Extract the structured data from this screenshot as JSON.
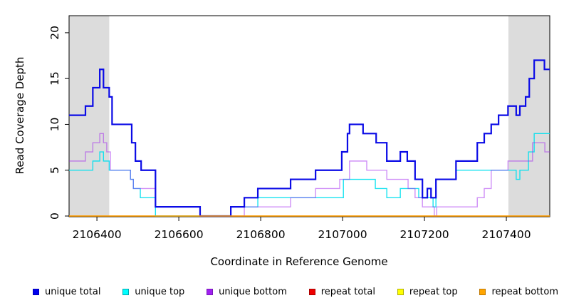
{
  "chart_data": {
    "type": "line",
    "subtype": "step",
    "title": "",
    "xlabel": "Coordinate in Reference Genome",
    "ylabel": "Read Coverage Depth",
    "xlim": [
      2106332,
      2107506
    ],
    "ylim": [
      0,
      21.86
    ],
    "xticks": [
      2106400,
      2106600,
      2106800,
      2107000,
      2107200,
      2107400
    ],
    "yticks": [
      0,
      5,
      10,
      15,
      20
    ],
    "grid": false,
    "legend_position": "bottom",
    "colors": {
      "background": "#FFFFFF",
      "shaded_band": "#DCDCDC",
      "axis": "#000000"
    },
    "shaded_regions": [
      {
        "from": 2106332,
        "to": 2106430
      },
      {
        "from": 2107405,
        "to": 2107506
      }
    ],
    "series": [
      {
        "name": "unique total",
        "color": "#0B0BE6",
        "width": 2.2,
        "opacity": 1,
        "points": [
          [
            2106332,
            11
          ],
          [
            2106372,
            12
          ],
          [
            2106390,
            14
          ],
          [
            2106407,
            16
          ],
          [
            2106416,
            14
          ],
          [
            2106430,
            13
          ],
          [
            2106437,
            10
          ],
          [
            2106485,
            8
          ],
          [
            2106494,
            6
          ],
          [
            2106508,
            5
          ],
          [
            2106543,
            1
          ],
          [
            2106652,
            0
          ],
          [
            2106727,
            1
          ],
          [
            2106760,
            2
          ],
          [
            2106793,
            3
          ],
          [
            2106873,
            4
          ],
          [
            2106934,
            5
          ],
          [
            2106998,
            7
          ],
          [
            2107012,
            9
          ],
          [
            2107017,
            10
          ],
          [
            2107050,
            9
          ],
          [
            2107082,
            8
          ],
          [
            2107108,
            6
          ],
          [
            2107141,
            7
          ],
          [
            2107158,
            6
          ],
          [
            2107177,
            4
          ],
          [
            2107195,
            2
          ],
          [
            2107207,
            3
          ],
          [
            2107216,
            2
          ],
          [
            2107228,
            4
          ],
          [
            2107277,
            6
          ],
          [
            2107329,
            8
          ],
          [
            2107346,
            9
          ],
          [
            2107363,
            10
          ],
          [
            2107381,
            11
          ],
          [
            2107404,
            12
          ],
          [
            2107424,
            11
          ],
          [
            2107433,
            12
          ],
          [
            2107447,
            13
          ],
          [
            2107456,
            15
          ],
          [
            2107468,
            17
          ],
          [
            2107493,
            16
          ]
        ]
      },
      {
        "name": "unique top",
        "color": "#00E0EE",
        "width": 1.4,
        "opacity": 0.9,
        "points": [
          [
            2106332,
            5
          ],
          [
            2106390,
            6
          ],
          [
            2106407,
            7
          ],
          [
            2106416,
            6
          ],
          [
            2106430,
            5
          ],
          [
            2106482,
            4
          ],
          [
            2106489,
            3
          ],
          [
            2106506,
            2
          ],
          [
            2106543,
            0
          ],
          [
            2106727,
            1
          ],
          [
            2106793,
            2
          ],
          [
            2107002,
            4
          ],
          [
            2107080,
            3
          ],
          [
            2107108,
            2
          ],
          [
            2107141,
            3
          ],
          [
            2107186,
            2
          ],
          [
            2107221,
            1
          ],
          [
            2107228,
            4
          ],
          [
            2107277,
            5
          ],
          [
            2107424,
            4
          ],
          [
            2107433,
            5
          ],
          [
            2107454,
            7
          ],
          [
            2107468,
            9
          ]
        ]
      },
      {
        "name": "unique bottom",
        "color": "#A020F0",
        "width": 1.4,
        "opacity": 0.5,
        "points": [
          [
            2106332,
            6
          ],
          [
            2106372,
            7
          ],
          [
            2106390,
            8
          ],
          [
            2106407,
            9
          ],
          [
            2106416,
            8
          ],
          [
            2106424,
            7
          ],
          [
            2106433,
            5
          ],
          [
            2106482,
            4
          ],
          [
            2106489,
            3
          ],
          [
            2106543,
            1
          ],
          [
            2106652,
            0
          ],
          [
            2106760,
            1
          ],
          [
            2106873,
            2
          ],
          [
            2106934,
            3
          ],
          [
            2106993,
            4
          ],
          [
            2107017,
            6
          ],
          [
            2107059,
            5
          ],
          [
            2107108,
            4
          ],
          [
            2107160,
            3
          ],
          [
            2107177,
            2
          ],
          [
            2107195,
            1
          ],
          [
            2107224,
            0
          ],
          [
            2107230,
            1
          ],
          [
            2107329,
            2
          ],
          [
            2107346,
            3
          ],
          [
            2107363,
            5
          ],
          [
            2107404,
            6
          ],
          [
            2107464,
            8
          ],
          [
            2107494,
            7
          ]
        ]
      },
      {
        "name": "repeat total",
        "color": "#E00000",
        "width": 1.2,
        "opacity": 1,
        "points": [
          [
            2106332,
            0
          ]
        ]
      },
      {
        "name": "repeat top",
        "color": "#F0F000",
        "width": 1.2,
        "opacity": 1,
        "points": [
          [
            2106332,
            0
          ]
        ]
      },
      {
        "name": "repeat bottom",
        "color": "#FF9E00",
        "width": 1.6,
        "opacity": 1,
        "points": [
          [
            2106332,
            0
          ]
        ]
      }
    ],
    "legend": [
      {
        "label": "unique total",
        "fill": "#0000EE",
        "border": "#0000B8"
      },
      {
        "label": "unique top",
        "fill": "#00FFFF",
        "border": "#00A8B0"
      },
      {
        "label": "unique bottom",
        "fill": "#A020F0",
        "border": "#7817B8"
      },
      {
        "label": "repeat total",
        "fill": "#EE0000",
        "border": "#A80000"
      },
      {
        "label": "repeat top",
        "fill": "#FFFF00",
        "border": "#B0B000"
      },
      {
        "label": "repeat bottom",
        "fill": "#FFA500",
        "border": "#C07800"
      }
    ]
  }
}
